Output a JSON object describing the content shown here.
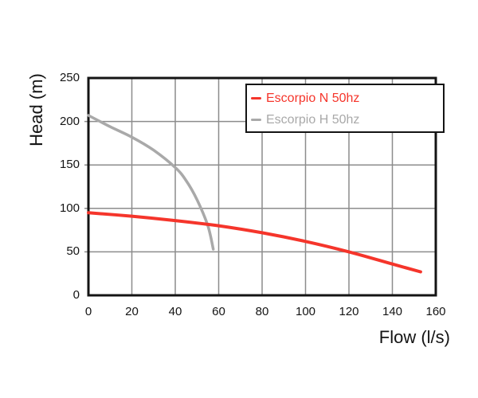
{
  "chart_data": {
    "type": "line",
    "title": "",
    "xlabel": "Flow (l/s)",
    "ylabel": "Head (m)",
    "xlim": [
      0,
      160
    ],
    "ylim": [
      0,
      250
    ],
    "x_ticks": [
      0,
      20,
      40,
      60,
      80,
      100,
      120,
      140,
      160
    ],
    "y_ticks": [
      0,
      50,
      100,
      150,
      200,
      250
    ],
    "grid": true,
    "legend": {
      "position": "top-right",
      "items": [
        {
          "label": "Escorpio N 50hz",
          "color": "#f5352b"
        },
        {
          "label": "Escorpio H 50hz",
          "color": "#a9a9a9"
        }
      ]
    },
    "series": [
      {
        "name": "Escorpio N 50hz",
        "color": "#f5352b",
        "points": [
          [
            0,
            95
          ],
          [
            20,
            91
          ],
          [
            40,
            86
          ],
          [
            60,
            80
          ],
          [
            80,
            72
          ],
          [
            100,
            62
          ],
          [
            120,
            50
          ],
          [
            140,
            36
          ],
          [
            153,
            27
          ]
        ]
      },
      {
        "name": "Escorpio H 50hz",
        "color": "#a9a9a9",
        "points": [
          [
            0,
            207
          ],
          [
            10,
            194
          ],
          [
            20,
            182
          ],
          [
            30,
            167
          ],
          [
            40,
            147
          ],
          [
            45,
            132
          ],
          [
            50,
            110
          ],
          [
            55,
            80
          ],
          [
            57.5,
            53
          ]
        ]
      }
    ]
  },
  "colors": {
    "axis": "#141414",
    "grid": "#8c8c8c",
    "background": "#ffffff"
  }
}
